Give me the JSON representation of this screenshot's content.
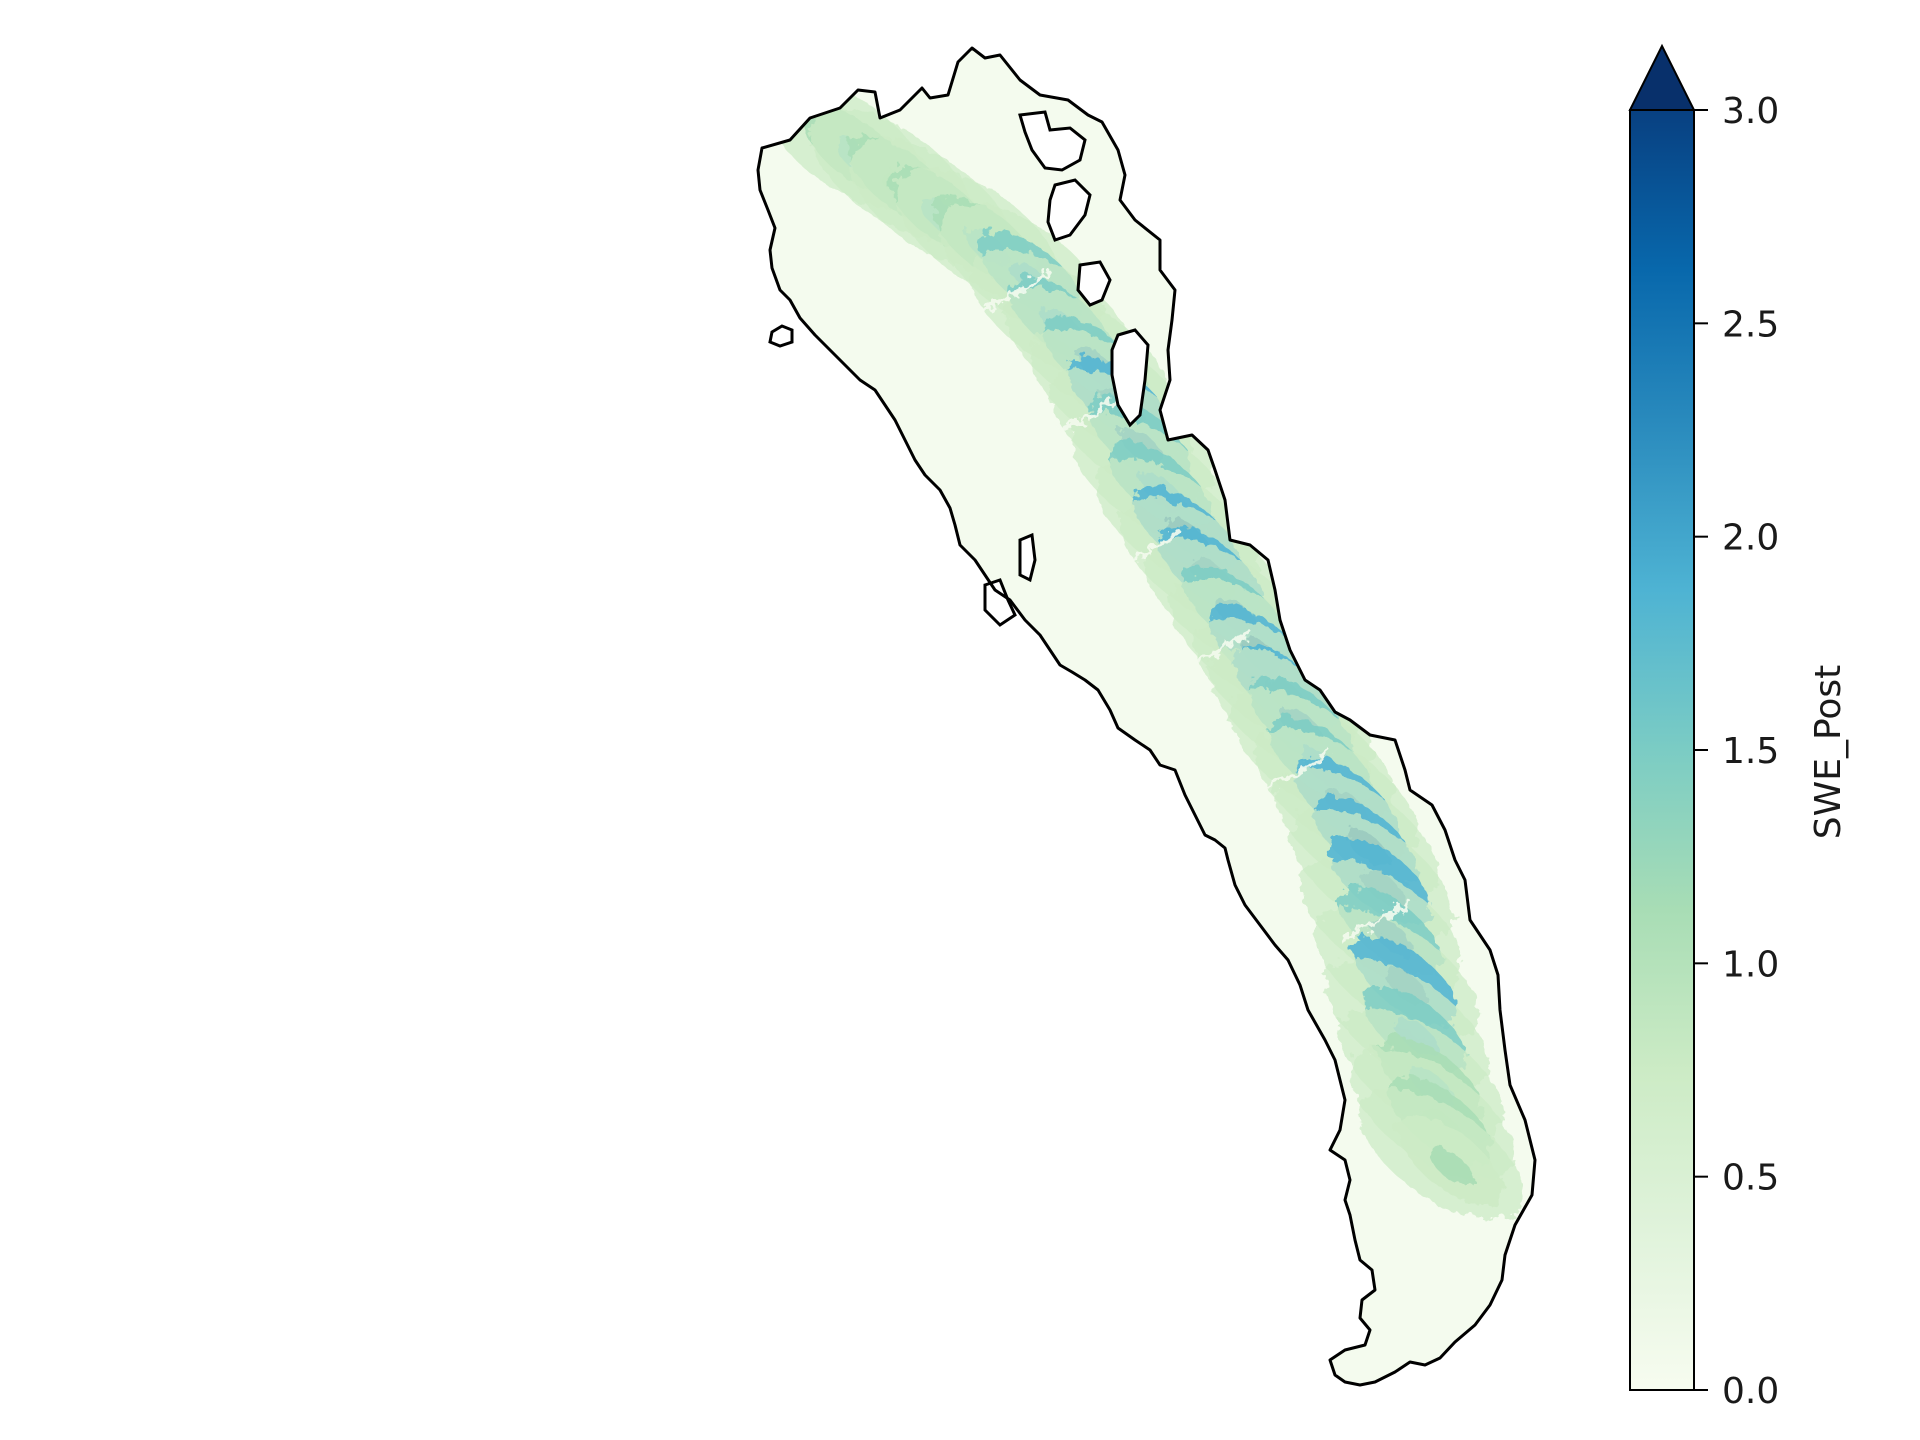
{
  "colorbar": {
    "label": "SWE_Post",
    "min": 0.0,
    "max": 3.0,
    "extend": "max",
    "ticks": [
      "0.0",
      "0.5",
      "1.0",
      "1.5",
      "2.0",
      "2.5",
      "3.0"
    ],
    "tick_values": [
      0.0,
      0.5,
      1.0,
      1.5,
      2.0,
      2.5,
      3.0
    ],
    "colormap": "GnBu",
    "colors": [
      "#f7fcf0",
      "#e0f3db",
      "#ccebc5",
      "#a8ddb5",
      "#7bccc4",
      "#4eb3d3",
      "#2b8cbe",
      "#0868ac",
      "#08306b"
    ]
  },
  "map": {
    "fill_low": "#f4fbee",
    "fill_high": "#0a4f93",
    "outline_color": "#000000"
  }
}
